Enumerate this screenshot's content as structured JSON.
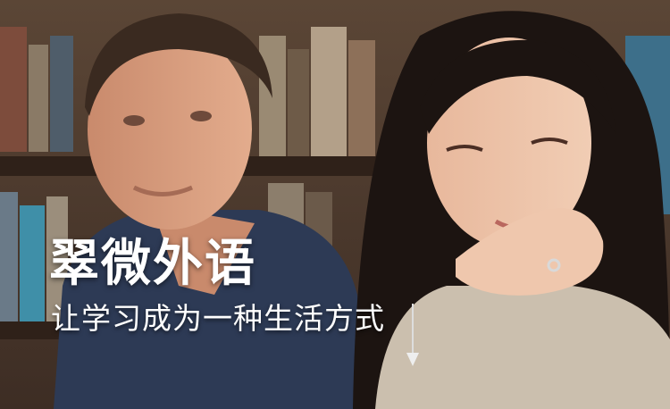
{
  "banner": {
    "headline": "翠微外语",
    "tagline": "让学习成为一种生活方式"
  },
  "colors": {
    "text": "#ffffff",
    "shirt": "#2d3a55",
    "sweater": "#cbbfae",
    "hair": "#1c1411"
  }
}
